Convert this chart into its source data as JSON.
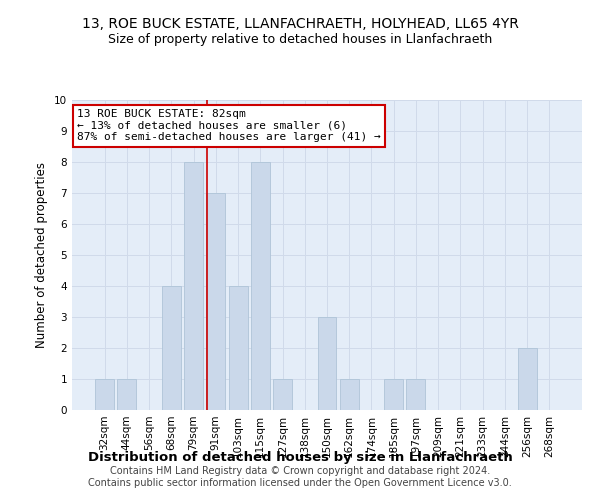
{
  "title": "13, ROE BUCK ESTATE, LLANFACHRAETH, HOLYHEAD, LL65 4YR",
  "subtitle": "Size of property relative to detached houses in Llanfachraeth",
  "xlabel": "Distribution of detached houses by size in Llanfachraeth",
  "ylabel": "Number of detached properties",
  "footer_line1": "Contains HM Land Registry data © Crown copyright and database right 2024.",
  "footer_line2": "Contains public sector information licensed under the Open Government Licence v3.0.",
  "bin_labels": [
    "32sqm",
    "44sqm",
    "56sqm",
    "68sqm",
    "79sqm",
    "91sqm",
    "103sqm",
    "115sqm",
    "127sqm",
    "138sqm",
    "150sqm",
    "162sqm",
    "174sqm",
    "185sqm",
    "197sqm",
    "209sqm",
    "221sqm",
    "233sqm",
    "244sqm",
    "256sqm",
    "268sqm"
  ],
  "bar_values": [
    1,
    1,
    0,
    4,
    8,
    7,
    4,
    8,
    1,
    0,
    3,
    1,
    0,
    1,
    1,
    0,
    0,
    0,
    0,
    2,
    0
  ],
  "bar_color": "#cad8ea",
  "bar_edgecolor": "#afc4d8",
  "annotation_text": "13 ROE BUCK ESTATE: 82sqm\n← 13% of detached houses are smaller (6)\n87% of semi-detached houses are larger (41) →",
  "vline_index": 4.6,
  "vline_color": "#cc0000",
  "annotation_box_edgecolor": "#cc0000",
  "annotation_box_facecolor": "#ffffff",
  "ylim": [
    0,
    10
  ],
  "yticks": [
    0,
    1,
    2,
    3,
    4,
    5,
    6,
    7,
    8,
    9,
    10
  ],
  "grid_color": "#d0daea",
  "background_color": "#e4edf8",
  "title_fontsize": 10,
  "subtitle_fontsize": 9,
  "xlabel_fontsize": 9.5,
  "ylabel_fontsize": 8.5,
  "tick_fontsize": 7.5,
  "annotation_fontsize": 8,
  "footer_fontsize": 7
}
